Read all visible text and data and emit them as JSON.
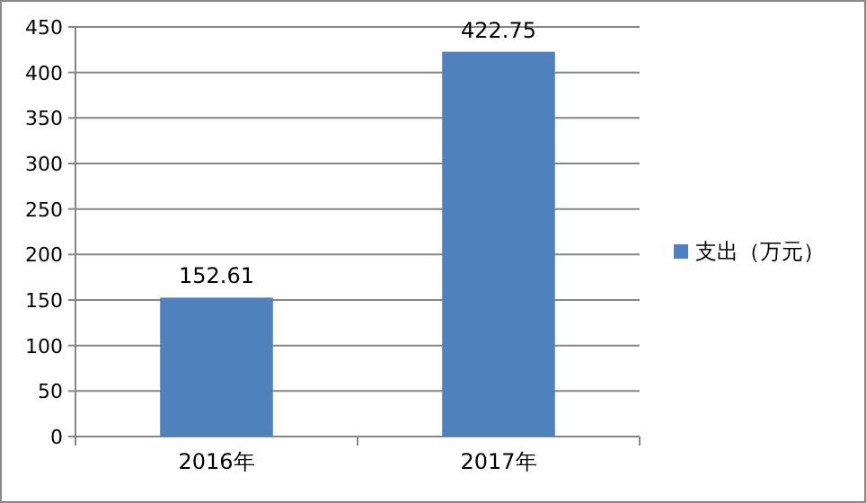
{
  "chart_data": {
    "type": "bar",
    "categories": [
      "2016年",
      "2017年"
    ],
    "series": [
      {
        "name": "支出（万元）",
        "color": "#4f81bd",
        "values": [
          152.61,
          422.75
        ]
      }
    ],
    "ylim": [
      0,
      450
    ],
    "yticks": [
      0,
      50,
      100,
      150,
      200,
      250,
      300,
      350,
      400,
      450
    ],
    "grid": "y",
    "legend": "right",
    "data_labels": true
  }
}
